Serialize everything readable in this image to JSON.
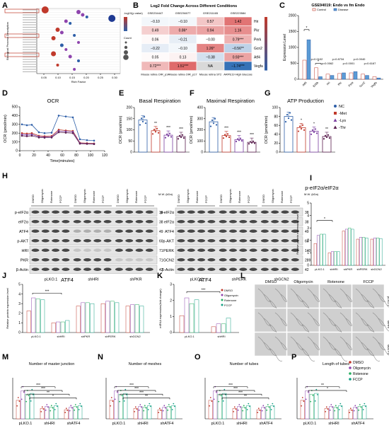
{
  "panels": {
    "A": {
      "letter": "A",
      "ylabel": "Biological Process Description",
      "xlabel": "Rich Factor",
      "xticks": [
        "0.05",
        "0.10",
        "0.15",
        "0.20",
        "0.25",
        "0.30"
      ],
      "legend_title": "-log10(p value)",
      "count_title": "Count"
    },
    "B": {
      "letter": "B",
      "title": "Log2 Fold Change Across Different Conditions",
      "gse": [
        "GSE234447",
        "GSE236077",
        "GSE211165",
        "GSE223584"
      ],
      "genes": [
        "Hri",
        "Pkr",
        "Perk",
        "Gcn2",
        "Atf4",
        "Vegfa"
      ],
      "conditions": [
        "Mouse retina OIR_p14",
        "Mouse retina OIR_p17",
        "Mouse retina ST2",
        "ARPE19 High Glucose"
      ],
      "cells": [
        [
          "−0.10",
          "−0.10",
          "0.57",
          "1.42"
        ],
        [
          "0.49",
          "0.86*",
          "0.94",
          "1.16"
        ],
        [
          "0.06",
          "−0.21",
          "−0.00",
          "0.79***"
        ],
        [
          "−0.22",
          "−0.10",
          "1.26*",
          "−0.56**"
        ],
        [
          "0.05",
          "0.13",
          "−0.38",
          "0.93***"
        ],
        [
          "0.72***",
          "1.51***",
          "NA",
          "−1.74***"
        ]
      ]
    },
    "C": {
      "letter": "C",
      "title": "GSE94019: Endo vs fm Endo",
      "legend": [
        "Control",
        "Disease"
      ],
      "ylabel": "Expression Level",
      "categories": [
        "Atf4",
        "Eif2b",
        "Hri",
        "Pkr",
        "Perk",
        "Gcn2",
        "Vegfa"
      ],
      "pvals": [
        "p=0.0102",
        "p=0.0062",
        "p=0.8734",
        "p=0.0001",
        "p=0.0040",
        "p=0.6167"
      ]
    },
    "D": {
      "letter": "D",
      "title": "OCR",
      "ylabel": "OCR (pmol/min)",
      "xlabel": "Time(minutes)",
      "yticks": [
        "0",
        "100",
        "200",
        "300",
        "400",
        "500"
      ],
      "xticks": [
        "0",
        "20",
        "40",
        "60",
        "80",
        "100",
        "120"
      ]
    },
    "E": {
      "letter": "E",
      "title": "Basal Respiration",
      "ylabel": "OCR (pmol/min)",
      "yticks": [
        "0",
        "50",
        "100",
        "150",
        "200"
      ]
    },
    "F": {
      "letter": "F",
      "title": "Maximal Respiration",
      "ylabel": "OCR (pmol/min)",
      "yticks": [
        "0",
        "100",
        "200",
        "300",
        "400"
      ]
    },
    "G": {
      "letter": "G",
      "title": "ATP Production",
      "ylabel": "OCR (pmol/min)",
      "yticks": [
        "0",
        "20",
        "40",
        "60",
        "80",
        "100"
      ],
      "legend": [
        "NC",
        "-Met",
        "-Lys",
        "-Thr"
      ]
    },
    "H": {
      "letter": "H",
      "left_rows": [
        "p-eIF2α",
        "eIF2α",
        "ATF4",
        "p-AKT",
        "HRI",
        "PKR",
        "β-Actin"
      ],
      "left_mw": [
        "38",
        "38",
        "49",
        "60",
        "71",
        "71",
        "42"
      ],
      "left_groups": [
        "pLKO.1",
        "shHRI",
        "shPKR"
      ],
      "right_rows": [
        "p-eIF2α",
        "eIF2α",
        "ATF4",
        "p-AKT",
        "PERK",
        "GCN2",
        "β-Actin"
      ],
      "right_mw": [
        "38",
        "38",
        "49",
        "60",
        "140",
        "289",
        "42"
      ],
      "right_groups": [
        "pLKO.1",
        "shPERK",
        "shGCN2"
      ],
      "treatments": [
        "DMSO",
        "Oligomycin",
        "Rotenone",
        "FCCP"
      ],
      "mw_label": "M.W. (kDa)"
    },
    "I": {
      "letter": "I",
      "title": "p-eIF2α/eIF2α",
      "ylabel": "Relative protein expression level",
      "categories": [
        "pLKO.1",
        "shHRI",
        "shPKR",
        "shPERK",
        "shGCN2"
      ]
    },
    "J": {
      "letter": "J",
      "title": "ATF4",
      "ylabel": "Relative protein expression level",
      "categories": [
        "pLKO.1",
        "shHRI",
        "shPKR",
        "shPERK",
        "shGCN2"
      ]
    },
    "K": {
      "letter": "K",
      "title": "ATF4",
      "ylabel": "mRNA expression(fold change)",
      "categories": [
        "pLKO.1",
        "shHRI"
      ],
      "legend": [
        "DMSO",
        "Oligomycin",
        "Rotenone",
        "FCCP"
      ]
    },
    "L": {
      "letter": "L",
      "cols": [
        "DMSO",
        "Oligomycin",
        "Rotenone",
        "FCCP"
      ],
      "rows": [
        "pLKO.1",
        "shHRI",
        "shATF4"
      ]
    },
    "M": {
      "letter": "M",
      "title": "Number of master junction",
      "categories": [
        "pLKO.1",
        "shHRI",
        "shATF4"
      ]
    },
    "N": {
      "letter": "N",
      "title": "Number of meshes",
      "categories": [
        "pLKO.1",
        "shHRI",
        "shATF4"
      ]
    },
    "O": {
      "letter": "O",
      "title": "Number of tubes",
      "categories": [
        "pLKO.1",
        "shHRI",
        "shATF4"
      ]
    },
    "P": {
      "letter": "P",
      "title": "Length of tubes",
      "categories": [
        "pLKO.1",
        "shHRI",
        "shATF4"
      ],
      "legend": [
        "DMSO",
        "Oligomycin",
        "Rotenone",
        "FCCP"
      ]
    }
  },
  "colors": {
    "dmso": "#c0392b",
    "oligo": "#8e44ad",
    "rot": "#27ae60",
    "fccp": "#16a085",
    "nc": "#2e5fa8",
    "met": "#c0392b",
    "lys": "#7b3fa0",
    "thr": "#5b1f4f",
    "heat_pos": "#d94f4f",
    "heat_neg": "#2f6db5"
  }
}
